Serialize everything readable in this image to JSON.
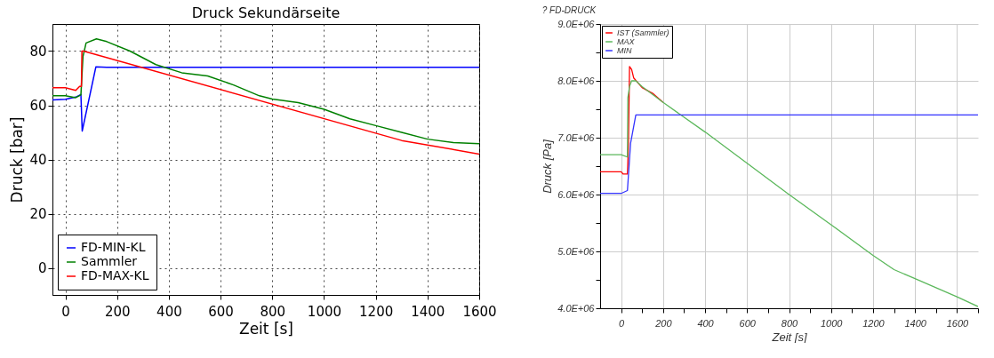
{
  "chart_data": [
    {
      "type": "line",
      "title": "Druck Sekundärseite",
      "xlabel": "Zeit [s]",
      "ylabel": "Druck [bar]",
      "xlim": [
        -50,
        1600
      ],
      "ylim": [
        -10,
        90
      ],
      "xticks": [
        0,
        200,
        400,
        600,
        800,
        1000,
        1200,
        1400,
        1600
      ],
      "yticks": [
        0,
        20,
        40,
        60,
        80
      ],
      "grid": true,
      "legend": "bottom left",
      "series": [
        {
          "name": "FD-MIN-KL",
          "color": "#0000ff",
          "x": [
            -50,
            0,
            40,
            60,
            65,
            118,
            160,
            1600
          ],
          "values": [
            62,
            62.2,
            63,
            64,
            50.5,
            74.2,
            74,
            74
          ]
        },
        {
          "name": "Sammler",
          "color": "#008000",
          "x": [
            -50,
            0,
            40,
            60,
            68,
            80,
            120,
            160,
            250,
            350,
            450,
            550,
            650,
            750,
            800,
            900,
            1000,
            1100,
            1200,
            1300,
            1400,
            1500,
            1600
          ],
          "values": [
            63.5,
            63.5,
            62.8,
            63.8,
            78,
            83,
            84.5,
            83.5,
            80,
            75,
            72,
            70.8,
            67.5,
            63.5,
            62.3,
            61,
            58.5,
            55,
            52.5,
            50,
            47.5,
            46.2,
            45.8
          ]
        },
        {
          "name": "FD-MAX-KL",
          "color": "#ff0000",
          "x": [
            -50,
            0,
            40,
            55,
            62,
            64,
            70,
            1300,
            1600
          ],
          "values": [
            66.5,
            66.5,
            65.5,
            67,
            67,
            80,
            80,
            47,
            42
          ]
        }
      ]
    },
    {
      "type": "line",
      "title": "?   FD-DRUCK",
      "xlabel": "Zeit [s]",
      "ylabel": "Druck [Pa]",
      "xlim": [
        -100,
        1700
      ],
      "ylim": [
        4000000,
        9000000
      ],
      "xticks": [
        0,
        {
          "value": 100,
          "label": null
        },
        200,
        {
          "value": 300,
          "label": null
        },
        400,
        {
          "value": 500,
          "label": null
        },
        600,
        {
          "value": 700,
          "label": null
        },
        800,
        {
          "value": 900,
          "label": null
        },
        1000,
        {
          "value": 1100,
          "label": null
        },
        1200,
        {
          "value": 1300,
          "label": null
        },
        1400,
        {
          "value": 1500,
          "label": null
        },
        1600,
        {
          "value": 1700,
          "label": null
        }
      ],
      "yticks": [
        {
          "value": 4000000,
          "label": "4.0E+06"
        },
        {
          "value": 4500000,
          "label": null
        },
        {
          "value": 5000000,
          "label": "5.0E+06"
        },
        {
          "value": 5500000,
          "label": null
        },
        {
          "value": 6000000,
          "label": "6.0E+06"
        },
        {
          "value": 6500000,
          "label": null
        },
        {
          "value": 7000000,
          "label": "7.0E+06"
        },
        {
          "value": 7500000,
          "label": null
        },
        {
          "value": 8000000,
          "label": "8.0E+06"
        },
        {
          "value": 8500000,
          "label": null
        },
        {
          "value": 9000000,
          "label": "9.0E+06"
        }
      ],
      "grid": true,
      "legend": "top left",
      "series": [
        {
          "name": "IST (Sammler)",
          "color": "#ff0000",
          "x": [
            -100,
            0,
            10,
            30,
            35,
            40,
            50,
            60,
            100,
            150,
            200
          ],
          "values": [
            6400000,
            6400000,
            6360000,
            6360000,
            6900000,
            8250000,
            8200000,
            8050000,
            7880000,
            7780000,
            7620000
          ]
        },
        {
          "name": "MAX",
          "color": "#5cb85c",
          "x": [
            -100,
            0,
            30,
            32,
            40,
            50,
            70,
            100,
            200,
            400,
            800,
            1000,
            1200,
            1300,
            1400,
            1600,
            1700
          ],
          "values": [
            6700000,
            6700000,
            6660000,
            7700000,
            7900000,
            8000000,
            8000000,
            7900000,
            7620000,
            7100000,
            6000000,
            5470000,
            4930000,
            4680000,
            4520000,
            4200000,
            4030000
          ]
        },
        {
          "name": "MIN",
          "color": "#3333ff",
          "x": [
            -100,
            0,
            30,
            45,
            60,
            70,
            1700
          ],
          "values": [
            6020000,
            6020000,
            6070000,
            6900000,
            7200000,
            7400000,
            7400000
          ]
        }
      ]
    }
  ]
}
